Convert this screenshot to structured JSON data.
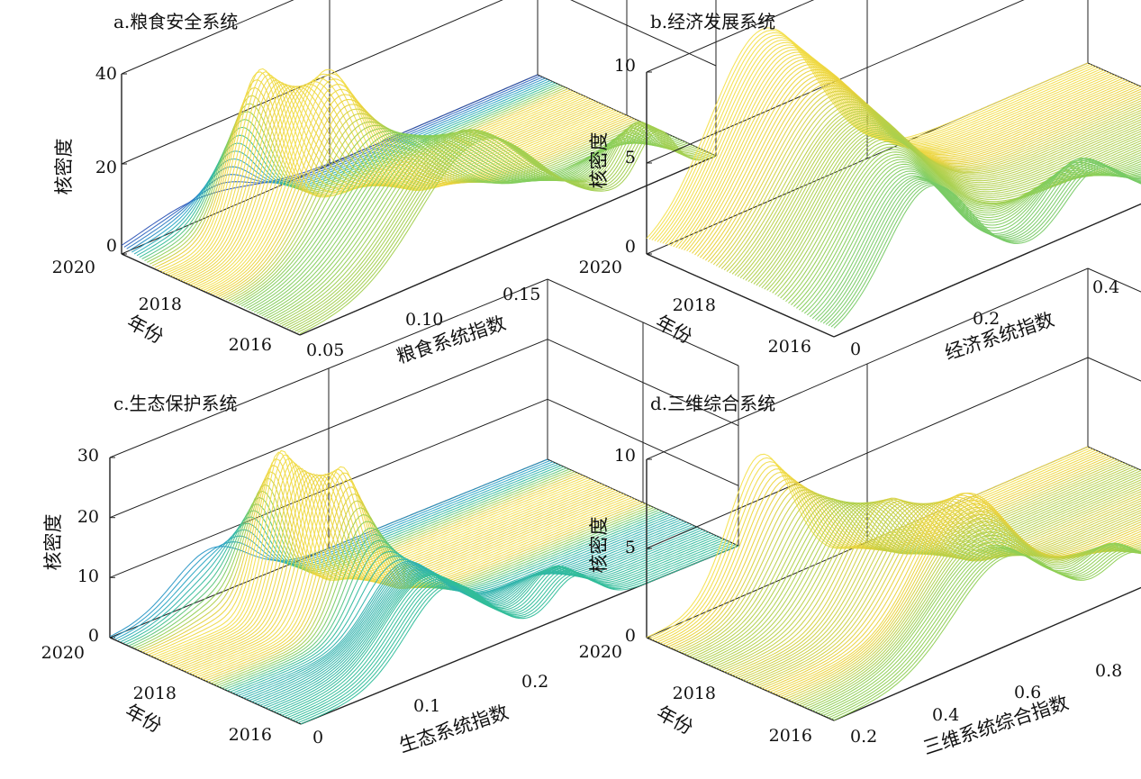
{
  "figure": {
    "wireframe_colormap": [
      "#2b2a8f",
      "#2f5fbf",
      "#2aa3c7",
      "#32bd9a",
      "#8fcf55",
      "#e9d13a",
      "#f4e04d"
    ],
    "panels": [
      {
        "title": "a.粮食安全系统",
        "zlabel": "核密度",
        "ylabel": "年份",
        "xlabel": "粮食系统指数",
        "zticks": [
          "0",
          "20",
          "40"
        ],
        "yticks": [
          "2020",
          "2018",
          "2016"
        ],
        "xticks": [
          "0.05",
          "0.10",
          "0.15"
        ]
      },
      {
        "title": "b.经济发展系统",
        "zlabel": "核密度",
        "ylabel": "年份",
        "xlabel": "经济系统指数",
        "zticks": [
          "0",
          "5",
          "10"
        ],
        "yticks": [
          "2020",
          "2018",
          "2016"
        ],
        "xticks": [
          "0",
          "0.2",
          "0.4"
        ]
      },
      {
        "title": "c.生态保护系统",
        "zlabel": "核密度",
        "ylabel": "年份",
        "xlabel": "生态系统指数",
        "zticks": [
          "0",
          "10",
          "20",
          "30"
        ],
        "yticks": [
          "2020",
          "2018",
          "2016"
        ],
        "xticks": [
          "0",
          "0.1",
          "0.2"
        ]
      },
      {
        "title": "d.三维综合系统",
        "zlabel": "核密度",
        "ylabel": "年份",
        "xlabel": "三维系统综合指数",
        "zticks": [
          "0",
          "5",
          "10"
        ],
        "yticks": [
          "2020",
          "2018",
          "2016"
        ],
        "xticks": [
          "0.2",
          "0.4",
          "0.6",
          "0.8"
        ]
      }
    ]
  },
  "chart_data": [
    {
      "type": "3d-surface",
      "title": "a.粮食安全系统",
      "xlabel": "粮食系统指数",
      "ylabel": "年份",
      "zlabel": "核密度",
      "xlim": [
        0.03,
        0.17
      ],
      "ylim": [
        2015.5,
        2020
      ],
      "zlim": [
        0,
        40
      ],
      "years": [
        2016,
        2017,
        2018,
        2019,
        2020
      ],
      "peaks": [
        {
          "year": 2016,
          "components": [
            [
              0.09,
              0.02,
              26
            ],
            [
              0.15,
              0.006,
              11
            ]
          ]
        },
        {
          "year": 2017,
          "components": [
            [
              0.08,
              0.018,
              24
            ]
          ]
        },
        {
          "year": 2018,
          "components": [
            [
              0.072,
              0.012,
              37
            ]
          ]
        },
        {
          "year": 2019,
          "components": [
            [
              0.063,
              0.008,
              36
            ]
          ]
        },
        {
          "year": 2020,
          "components": [
            [
              0.055,
              0.018,
              5
            ]
          ]
        }
      ]
    },
    {
      "type": "3d-surface",
      "title": "b.经济发展系统",
      "xlabel": "经济系统指数",
      "ylabel": "年份",
      "zlabel": "核密度",
      "xlim": [
        0,
        0.42
      ],
      "ylim": [
        2015.5,
        2020
      ],
      "zlim": [
        0,
        10
      ],
      "years": [
        2016,
        2017,
        2018,
        2019,
        2020
      ],
      "peaks": [
        {
          "year": 2016,
          "components": [
            [
              0.09,
              0.04,
              6.0
            ],
            [
              0.25,
              0.03,
              3.0
            ]
          ]
        },
        {
          "year": 2017,
          "components": [
            [
              0.1,
              0.05,
              6.8
            ]
          ]
        },
        {
          "year": 2018,
          "components": [
            [
              0.11,
              0.055,
              7.2
            ]
          ]
        },
        {
          "year": 2019,
          "components": [
            [
              0.11,
              0.055,
              8.5
            ]
          ]
        },
        {
          "year": 2020,
          "components": [
            [
              0.11,
              0.05,
              9.6
            ]
          ]
        }
      ]
    },
    {
      "type": "3d-surface",
      "title": "c.生态保护系统",
      "xlabel": "生态系统指数",
      "ylabel": "年份",
      "zlabel": "核密度",
      "xlim": [
        0,
        0.24
      ],
      "ylim": [
        2015.5,
        2020
      ],
      "zlim": [
        0,
        30
      ],
      "years": [
        2016,
        2017,
        2018,
        2019,
        2020
      ],
      "peaks": [
        {
          "year": 2016,
          "components": [
            [
              0.08,
              0.022,
              13
            ],
            [
              0.15,
              0.012,
              6
            ]
          ]
        },
        {
          "year": 2017,
          "components": [
            [
              0.09,
              0.018,
              11
            ]
          ]
        },
        {
          "year": 2018,
          "components": [
            [
              0.08,
              0.012,
              25
            ]
          ]
        },
        {
          "year": 2019,
          "components": [
            [
              0.07,
              0.01,
              26
            ]
          ]
        },
        {
          "year": 2020,
          "components": [
            [
              0.055,
              0.02,
              8
            ]
          ]
        }
      ]
    },
    {
      "type": "3d-surface",
      "title": "d.三维综合系统",
      "xlabel": "三维系统综合指数",
      "ylabel": "年份",
      "zlabel": "核密度",
      "xlim": [
        0.15,
        0.85
      ],
      "ylim": [
        2015.5,
        2020
      ],
      "zlim": [
        0,
        10
      ],
      "years": [
        2016,
        2017,
        2018,
        2019,
        2020
      ],
      "peaks": [
        {
          "year": 2016,
          "components": [
            [
              0.42,
              0.08,
              5.0
            ],
            [
              0.62,
              0.04,
              2.0
            ]
          ]
        },
        {
          "year": 2017,
          "components": [
            [
              0.45,
              0.07,
              6.6
            ]
          ]
        },
        {
          "year": 2018,
          "components": [
            [
              0.4,
              0.06,
              6.0
            ]
          ]
        },
        {
          "year": 2019,
          "components": [
            [
              0.36,
              0.06,
              5.6
            ]
          ]
        },
        {
          "year": 2020,
          "components": [
            [
              0.33,
              0.05,
              7.5
            ]
          ]
        }
      ]
    }
  ]
}
